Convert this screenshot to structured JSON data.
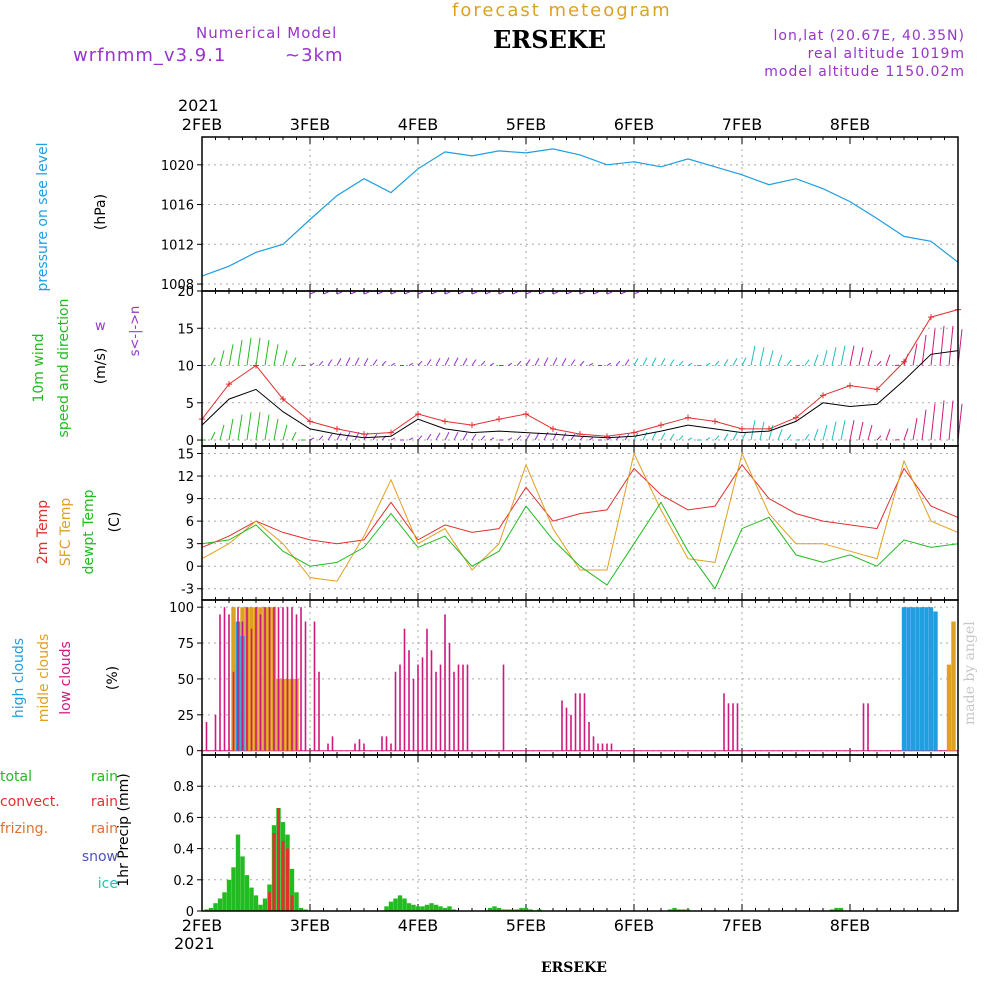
{
  "header": {
    "title": "forecast meteogram",
    "location": "ERSEKE",
    "model_label": "Numerical Model",
    "model_name": "wrfnmm_v3.9.1",
    "resolution": "~3km",
    "coordinates": "lon,lat (20.67E, 40.35N)",
    "real_altitude": "real altitude  1019m",
    "model_altitude": "model altitude  1150.02m",
    "year": "2021",
    "footer_location": "ERSEKE",
    "credit": "made by angel"
  },
  "colors": {
    "pressure": "#1f9ee0",
    "wind_label": "#22bb22",
    "wind_speed": "#e03030",
    "gust": "#000000",
    "t2m": "#e03030",
    "tsfc": "#e0a020",
    "dewpt": "#22bb22",
    "high_clouds": "#1f9ee0",
    "mid_clouds": "#e0a020",
    "low_clouds": "#d01880",
    "total_rain": "#22bb22",
    "convect_rain": "#e03030",
    "freezing_rain": "#e07030",
    "snow": "#5050c0",
    "ice": "#20c0c0",
    "dir_label": "#9933cc"
  },
  "chart_data": [
    {
      "type": "line",
      "panel": "pressure",
      "ylabel": "pressure on see level",
      "yunit": "(hPa)",
      "ylim": [
        1007.3,
        1022.8
      ],
      "yticks": [
        1008,
        1012,
        1016,
        1020
      ],
      "x_day_ticks": [
        "2FEB",
        "3FEB",
        "4FEB",
        "5FEB",
        "6FEB",
        "7FEB",
        "8FEB"
      ],
      "grid": true,
      "series": [
        {
          "x": [
            0,
            6,
            12,
            18,
            24,
            30,
            36,
            42,
            48,
            54,
            60,
            66,
            72,
            78,
            84,
            90,
            96,
            102,
            108,
            114,
            120,
            126,
            132,
            138,
            144,
            150,
            156,
            162,
            168
          ],
          "values": [
            1008.8,
            1009.8,
            1011.2,
            1012.0,
            1014.5,
            1016.9,
            1018.6,
            1017.2,
            1019.6,
            1021.3,
            1020.9,
            1021.4,
            1021.2,
            1021.6,
            1021.0,
            1020.0,
            1020.3,
            1019.8,
            1020.6,
            1019.8,
            1019.0,
            1018.0,
            1018.6,
            1017.6,
            1016.3,
            1014.6,
            1012.8,
            1012.3,
            1010.2
          ]
        }
      ]
    },
    {
      "type": "line",
      "panel": "wind",
      "ylabel": "10m wind speed and direction",
      "yunit": "(m/s)",
      "ylim": [
        -0.8,
        20
      ],
      "yticks": [
        0,
        5,
        10,
        15,
        20
      ],
      "grid": true,
      "series": [
        {
          "name": "speed",
          "x": [
            0,
            6,
            12,
            18,
            24,
            30,
            36,
            42,
            48,
            54,
            60,
            66,
            72,
            78,
            84,
            90,
            96,
            102,
            108,
            114,
            120,
            126,
            132,
            138,
            144,
            150,
            156,
            162,
            168
          ],
          "values": [
            2.8,
            7.5,
            10.0,
            5.5,
            2.5,
            1.5,
            0.8,
            1.0,
            3.5,
            2.5,
            2.0,
            2.8,
            3.5,
            1.5,
            0.8,
            0.5,
            1.0,
            2.0,
            3.0,
            2.5,
            1.5,
            1.5,
            3.0,
            6.0,
            7.3,
            6.8,
            10.5,
            16.5,
            17.5
          ]
        },
        {
          "name": "gust",
          "x": [
            0,
            6,
            12,
            18,
            24,
            30,
            36,
            42,
            48,
            54,
            60,
            66,
            72,
            78,
            84,
            90,
            96,
            102,
            108,
            114,
            120,
            126,
            132,
            138,
            144,
            150,
            156,
            162,
            168
          ],
          "values": [
            2.0,
            5.5,
            6.8,
            3.8,
            1.5,
            0.8,
            0.3,
            0.5,
            2.8,
            1.5,
            1.0,
            1.2,
            1.0,
            0.8,
            0.5,
            0.3,
            0.5,
            1.2,
            2.0,
            1.5,
            1.0,
            1.2,
            2.5,
            5.0,
            4.5,
            4.8,
            8.0,
            11.5,
            12.0
          ]
        }
      ]
    },
    {
      "type": "line",
      "panel": "temperature",
      "ylabels": [
        "2m Temp",
        "SFC Temp",
        "dewpt Temp"
      ],
      "yunit": "(C)",
      "ylim": [
        -4.5,
        16
      ],
      "yticks": [
        -3,
        0,
        3,
        6,
        9,
        12,
        15
      ],
      "grid": true,
      "series": [
        {
          "name": "2m Temp",
          "x": [
            0,
            6,
            12,
            18,
            24,
            30,
            36,
            42,
            48,
            54,
            60,
            66,
            72,
            78,
            84,
            90,
            96,
            102,
            108,
            114,
            120,
            126,
            132,
            138,
            144,
            150,
            156,
            162,
            168
          ],
          "values": [
            2.5,
            4.0,
            6.0,
            4.5,
            3.5,
            3.0,
            3.5,
            8.5,
            3.5,
            5.5,
            4.5,
            5.0,
            10.5,
            6.0,
            7.0,
            7.5,
            13.0,
            9.5,
            7.5,
            8.0,
            13.5,
            9.0,
            7.0,
            6.0,
            5.5,
            5.0,
            13.0,
            8.0,
            6.5
          ]
        },
        {
          "name": "SFC Temp",
          "x": [
            0,
            6,
            12,
            18,
            24,
            30,
            36,
            42,
            48,
            54,
            60,
            66,
            72,
            78,
            84,
            90,
            96,
            102,
            108,
            114,
            120,
            126,
            132,
            138,
            144,
            150,
            156,
            162,
            168
          ],
          "values": [
            1.0,
            3.0,
            6.0,
            3.0,
            -1.5,
            -2.0,
            4.0,
            11.5,
            3.0,
            5.0,
            -0.5,
            3.0,
            13.5,
            5.0,
            -0.5,
            -0.5,
            15.0,
            7.5,
            1.0,
            0.5,
            15.0,
            7.0,
            3.0,
            3.0,
            2.0,
            1.0,
            14.0,
            6.0,
            4.5
          ]
        },
        {
          "name": "dewpt Temp",
          "x": [
            0,
            6,
            12,
            18,
            24,
            30,
            36,
            42,
            48,
            54,
            60,
            66,
            72,
            78,
            84,
            90,
            96,
            102,
            108,
            114,
            120,
            126,
            132,
            138,
            144,
            150,
            156,
            162,
            168
          ],
          "values": [
            3.0,
            3.5,
            5.5,
            2.0,
            0.0,
            0.5,
            2.5,
            7.0,
            2.5,
            4.0,
            0.0,
            2.0,
            8.0,
            3.5,
            0.0,
            -2.5,
            3.0,
            8.5,
            2.0,
            -3.0,
            5.0,
            6.5,
            1.5,
            0.5,
            1.5,
            0.0,
            3.5,
            2.5,
            3.0
          ]
        }
      ]
    },
    {
      "type": "bar",
      "panel": "clouds",
      "ylabels": [
        "high clouds",
        "midle clouds",
        "low clouds"
      ],
      "yunit": "(%)",
      "ylim": [
        -3,
        105
      ],
      "yticks": [
        0,
        25,
        50,
        75,
        100
      ],
      "grid": true,
      "series": [
        {
          "name": "low clouds",
          "x": [
            1,
            3,
            4,
            5,
            6,
            7,
            8,
            9,
            10,
            11,
            12,
            13,
            14,
            15,
            16,
            17,
            18,
            19,
            20,
            21,
            22,
            23,
            25,
            26,
            28,
            29,
            34,
            35,
            36,
            40,
            41,
            42,
            43,
            44,
            45,
            46,
            47,
            48,
            49,
            50,
            51,
            52,
            53,
            54,
            55,
            56,
            57,
            58,
            59,
            60,
            61,
            62,
            63,
            64,
            65,
            66,
            67,
            80,
            81,
            82,
            83,
            84,
            85,
            86,
            87,
            88,
            89,
            90,
            91,
            92,
            93,
            94,
            95,
            96,
            97,
            116,
            117,
            118,
            119,
            147,
            148
          ],
          "values": [
            20,
            25,
            95,
            100,
            95,
            55,
            100,
            90,
            100,
            85,
            100,
            95,
            100,
            100,
            100,
            100,
            100,
            100,
            100,
            95,
            100,
            90,
            90,
            55,
            5,
            10,
            5,
            8,
            5,
            10,
            10,
            5,
            55,
            60,
            85,
            70,
            50,
            60,
            65,
            85,
            70,
            55,
            60,
            95,
            75,
            55,
            60,
            60,
            60,
            0,
            0,
            0,
            0,
            0,
            0,
            0,
            60,
            35,
            30,
            25,
            40,
            40,
            40,
            20,
            10,
            5,
            5,
            5,
            5,
            0,
            0,
            0,
            0,
            0,
            0,
            40,
            33,
            33,
            33,
            33,
            33
          ]
        },
        {
          "name": "midle clouds",
          "x": [
            7,
            8,
            9,
            10,
            11,
            12,
            13,
            14,
            15,
            16,
            17,
            18,
            19,
            20,
            21,
            22,
            166,
            167
          ],
          "values": [
            100,
            60,
            100,
            100,
            100,
            100,
            100,
            100,
            100,
            100,
            50,
            50,
            50,
            50,
            50,
            0,
            60,
            90
          ]
        },
        {
          "name": "high clouds",
          "x": [
            8,
            9,
            10,
            11,
            12,
            156,
            157,
            158,
            159,
            160,
            161,
            162,
            163
          ],
          "values": [
            90,
            80,
            0,
            0,
            0,
            100,
            100,
            100,
            100,
            100,
            100,
            100,
            97
          ]
        }
      ]
    },
    {
      "type": "bar",
      "panel": "precipitation",
      "ylabels": [
        "total rain",
        "convect. rain",
        "frizing. rain",
        "snow",
        "ice"
      ],
      "yunit": "1hr Precip (mm)",
      "ylim": [
        0,
        1.0
      ],
      "yticks": [
        0,
        0.2,
        0.4,
        0.6,
        0.8
      ],
      "grid": true,
      "series": [
        {
          "name": "total rain",
          "x": [
            1,
            2,
            3,
            4,
            5,
            6,
            7,
            8,
            9,
            10,
            11,
            12,
            13,
            14,
            15,
            16,
            17,
            18,
            19,
            20,
            21,
            22,
            23,
            41,
            42,
            43,
            44,
            45,
            46,
            47,
            48,
            49,
            50,
            51,
            52,
            53,
            54,
            55,
            56,
            64,
            65,
            66,
            67,
            68,
            69,
            70,
            71,
            72,
            73,
            75,
            104,
            105,
            106,
            107,
            108,
            140,
            141,
            142
          ],
          "values": [
            0.01,
            0.02,
            0.05,
            0.08,
            0.12,
            0.2,
            0.28,
            0.49,
            0.35,
            0.23,
            0.15,
            0.1,
            0.04,
            0.08,
            0.17,
            0.55,
            0.66,
            0.57,
            0.49,
            0.27,
            0.12,
            0.02,
            0.01,
            0.03,
            0.06,
            0.08,
            0.1,
            0.08,
            0.05,
            0.04,
            0.03,
            0.03,
            0.04,
            0.05,
            0.04,
            0.03,
            0.02,
            0.03,
            0.01,
            0.02,
            0.03,
            0.02,
            0.01,
            0.01,
            0.01,
            0.01,
            0.02,
            0.02,
            0.01,
            0.01,
            0.01,
            0.02,
            0.01,
            0.01,
            0.01,
            0.01,
            0.02,
            0.02
          ]
        },
        {
          "name": "convect. rain",
          "x": [
            15,
            16,
            17,
            18,
            19,
            20
          ],
          "values": [
            0.12,
            0.5,
            0.66,
            0.45,
            0.4,
            0.1
          ]
        }
      ]
    }
  ]
}
